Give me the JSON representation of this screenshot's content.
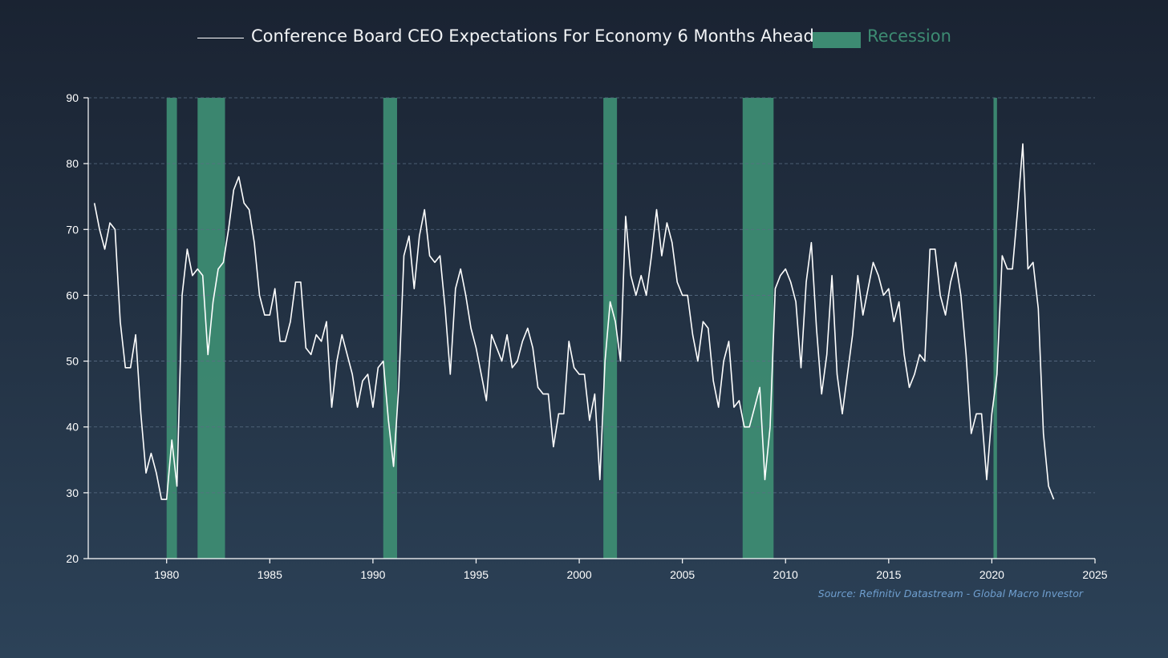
{
  "legend": {
    "series_label": "Conference Board CEO Expectations For Economy 6 Months Ahead",
    "recession_label": "Recession"
  },
  "source": "Source: Refinitiv Datastream - Global Macro Investor",
  "colors": {
    "line": "#ffffff",
    "recession": "#3d8b72",
    "grid": "#5a6e85",
    "axis": "#ffffff",
    "text": "#ffffff"
  },
  "chart_data": {
    "type": "line",
    "title": "",
    "xlabel": "",
    "ylabel": "",
    "xlim": [
      1976.2,
      2025
    ],
    "ylim": [
      20,
      90
    ],
    "x_ticks": [
      1980,
      1985,
      1990,
      1995,
      2000,
      2005,
      2010,
      2015,
      2020,
      2025
    ],
    "y_ticks": [
      20,
      30,
      40,
      50,
      60,
      70,
      80,
      90
    ],
    "grid": "horizontal dashed",
    "legend_position": "top-center",
    "recessions": [
      [
        1980.0,
        1980.5
      ],
      [
        1981.5,
        1982.83
      ],
      [
        1990.5,
        1991.17
      ],
      [
        2001.17,
        2001.83
      ],
      [
        2007.92,
        2009.42
      ],
      [
        2020.08,
        2020.25
      ]
    ],
    "series": [
      {
        "name": "Conference Board CEO Expectations For Economy 6 Months Ahead",
        "points": [
          [
            1976.5,
            74
          ],
          [
            1976.75,
            70
          ],
          [
            1977.0,
            67
          ],
          [
            1977.25,
            71
          ],
          [
            1977.5,
            70
          ],
          [
            1977.75,
            56
          ],
          [
            1978.0,
            49
          ],
          [
            1978.25,
            49
          ],
          [
            1978.5,
            54
          ],
          [
            1978.75,
            42
          ],
          [
            1979.0,
            33
          ],
          [
            1979.25,
            36
          ],
          [
            1979.5,
            33
          ],
          [
            1979.75,
            29
          ],
          [
            1980.0,
            29
          ],
          [
            1980.25,
            38
          ],
          [
            1980.5,
            31
          ],
          [
            1980.75,
            60
          ],
          [
            1981.0,
            67
          ],
          [
            1981.25,
            63
          ],
          [
            1981.5,
            64
          ],
          [
            1981.75,
            63
          ],
          [
            1982.0,
            51
          ],
          [
            1982.25,
            59
          ],
          [
            1982.5,
            64
          ],
          [
            1982.75,
            65
          ],
          [
            1983.0,
            70
          ],
          [
            1983.25,
            76
          ],
          [
            1983.5,
            78
          ],
          [
            1983.75,
            74
          ],
          [
            1984.0,
            73
          ],
          [
            1984.25,
            68
          ],
          [
            1984.5,
            60
          ],
          [
            1984.75,
            57
          ],
          [
            1985.0,
            57
          ],
          [
            1985.25,
            61
          ],
          [
            1985.5,
            53
          ],
          [
            1985.75,
            53
          ],
          [
            1986.0,
            56
          ],
          [
            1986.25,
            62
          ],
          [
            1986.5,
            62
          ],
          [
            1986.75,
            52
          ],
          [
            1987.0,
            51
          ],
          [
            1987.25,
            54
          ],
          [
            1987.5,
            53
          ],
          [
            1987.75,
            56
          ],
          [
            1988.0,
            43
          ],
          [
            1988.25,
            50
          ],
          [
            1988.5,
            54
          ],
          [
            1988.75,
            51
          ],
          [
            1989.0,
            48
          ],
          [
            1989.25,
            43
          ],
          [
            1989.5,
            47
          ],
          [
            1989.75,
            48
          ],
          [
            1990.0,
            43
          ],
          [
            1990.25,
            49
          ],
          [
            1990.5,
            50
          ],
          [
            1990.75,
            41
          ],
          [
            1991.0,
            34
          ],
          [
            1991.25,
            46
          ],
          [
            1991.5,
            66
          ],
          [
            1991.75,
            69
          ],
          [
            1992.0,
            61
          ],
          [
            1992.25,
            69
          ],
          [
            1992.5,
            73
          ],
          [
            1992.75,
            66
          ],
          [
            1993.0,
            65
          ],
          [
            1993.25,
            66
          ],
          [
            1993.5,
            58
          ],
          [
            1993.75,
            48
          ],
          [
            1994.0,
            61
          ],
          [
            1994.25,
            64
          ],
          [
            1994.5,
            60
          ],
          [
            1994.75,
            55
          ],
          [
            1995.0,
            52
          ],
          [
            1995.25,
            48
          ],
          [
            1995.5,
            44
          ],
          [
            1995.75,
            54
          ],
          [
            1996.0,
            52
          ],
          [
            1996.25,
            50
          ],
          [
            1996.5,
            54
          ],
          [
            1996.75,
            49
          ],
          [
            1997.0,
            50
          ],
          [
            1997.25,
            53
          ],
          [
            1997.5,
            55
          ],
          [
            1997.75,
            52
          ],
          [
            1998.0,
            46
          ],
          [
            1998.25,
            45
          ],
          [
            1998.5,
            45
          ],
          [
            1998.75,
            37
          ],
          [
            1999.0,
            42
          ],
          [
            1999.25,
            42
          ],
          [
            1999.5,
            53
          ],
          [
            1999.75,
            49
          ],
          [
            2000.0,
            48
          ],
          [
            2000.25,
            48
          ],
          [
            2000.5,
            41
          ],
          [
            2000.75,
            45
          ],
          [
            2001.0,
            32
          ],
          [
            2001.25,
            50
          ],
          [
            2001.5,
            59
          ],
          [
            2001.75,
            56
          ],
          [
            2002.0,
            50
          ],
          [
            2002.25,
            72
          ],
          [
            2002.5,
            63
          ],
          [
            2002.75,
            60
          ],
          [
            2003.0,
            63
          ],
          [
            2003.25,
            60
          ],
          [
            2003.5,
            66
          ],
          [
            2003.75,
            73
          ],
          [
            2004.0,
            66
          ],
          [
            2004.25,
            71
          ],
          [
            2004.5,
            68
          ],
          [
            2004.75,
            62
          ],
          [
            2005.0,
            60
          ],
          [
            2005.25,
            60
          ],
          [
            2005.5,
            54
          ],
          [
            2005.75,
            50
          ],
          [
            2006.0,
            56
          ],
          [
            2006.25,
            55
          ],
          [
            2006.5,
            47
          ],
          [
            2006.75,
            43
          ],
          [
            2007.0,
            50
          ],
          [
            2007.25,
            53
          ],
          [
            2007.5,
            43
          ],
          [
            2007.75,
            44
          ],
          [
            2008.0,
            40
          ],
          [
            2008.25,
            40
          ],
          [
            2008.5,
            43
          ],
          [
            2008.75,
            46
          ],
          [
            2009.0,
            32
          ],
          [
            2009.25,
            40
          ],
          [
            2009.5,
            61
          ],
          [
            2009.75,
            63
          ],
          [
            2010.0,
            64
          ],
          [
            2010.25,
            62
          ],
          [
            2010.5,
            59
          ],
          [
            2010.75,
            49
          ],
          [
            2011.0,
            62
          ],
          [
            2011.25,
            68
          ],
          [
            2011.5,
            55
          ],
          [
            2011.75,
            45
          ],
          [
            2012.0,
            51
          ],
          [
            2012.25,
            63
          ],
          [
            2012.5,
            48
          ],
          [
            2012.75,
            42
          ],
          [
            2013.0,
            48
          ],
          [
            2013.25,
            54
          ],
          [
            2013.5,
            63
          ],
          [
            2013.75,
            57
          ],
          [
            2014.0,
            61
          ],
          [
            2014.25,
            65
          ],
          [
            2014.5,
            63
          ],
          [
            2014.75,
            60
          ],
          [
            2015.0,
            61
          ],
          [
            2015.25,
            56
          ],
          [
            2015.5,
            59
          ],
          [
            2015.75,
            51
          ],
          [
            2016.0,
            46
          ],
          [
            2016.25,
            48
          ],
          [
            2016.5,
            51
          ],
          [
            2016.75,
            50
          ],
          [
            2017.0,
            67
          ],
          [
            2017.25,
            67
          ],
          [
            2017.5,
            60
          ],
          [
            2017.75,
            57
          ],
          [
            2018.0,
            62
          ],
          [
            2018.25,
            65
          ],
          [
            2018.5,
            60
          ],
          [
            2018.75,
            51
          ],
          [
            2019.0,
            39
          ],
          [
            2019.25,
            42
          ],
          [
            2019.5,
            42
          ],
          [
            2019.75,
            32
          ],
          [
            2020.0,
            42
          ],
          [
            2020.25,
            48
          ],
          [
            2020.5,
            66
          ],
          [
            2020.75,
            64
          ],
          [
            2021.0,
            64
          ],
          [
            2021.25,
            73
          ],
          [
            2021.5,
            83
          ],
          [
            2021.75,
            64
          ],
          [
            2022.0,
            65
          ],
          [
            2022.25,
            58
          ],
          [
            2022.5,
            39
          ],
          [
            2022.75,
            31
          ],
          [
            2023.0,
            29
          ]
        ]
      }
    ]
  }
}
